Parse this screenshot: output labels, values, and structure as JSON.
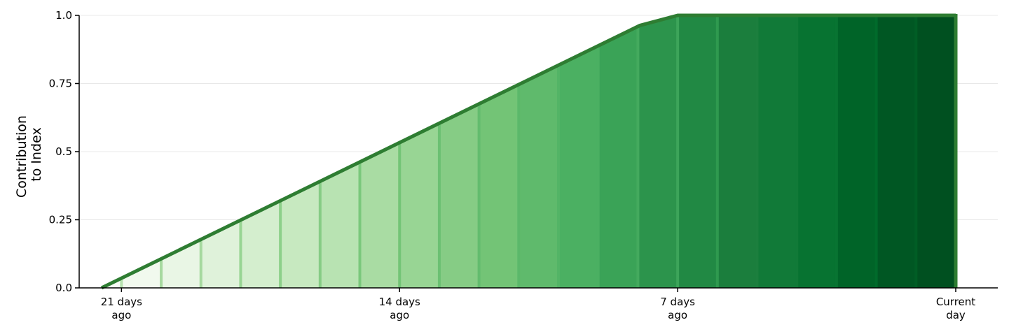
{
  "chart_data": {
    "type": "area",
    "title": "",
    "ylabel": [
      "Contribution",
      "to Index"
    ],
    "xlabel": "",
    "ylim": [
      0,
      1.0
    ],
    "xlim": [
      -21.5,
      0
    ],
    "grid": "horizontal",
    "y_ticks": [
      {
        "value": 0.0,
        "label": "0.0"
      },
      {
        "value": 0.25,
        "label": "0.25"
      },
      {
        "value": 0.5,
        "label": "0.5"
      },
      {
        "value": 0.75,
        "label": "0.75"
      },
      {
        "value": 1.0,
        "label": "1.0"
      }
    ],
    "x_ticks": [
      {
        "value": -21,
        "label": [
          "21 days",
          "ago"
        ]
      },
      {
        "value": -14,
        "label": [
          "14 days",
          "ago"
        ]
      },
      {
        "value": -7,
        "label": [
          "7 days",
          "ago"
        ]
      },
      {
        "value": 0,
        "label": [
          "Current",
          "day"
        ]
      }
    ],
    "curve": {
      "x": [
        -21.5,
        -7.95,
        -7,
        0
      ],
      "y": [
        0.0,
        0.963,
        1.0,
        1.0
      ],
      "color": "#2e7d32"
    },
    "bands": {
      "boundaries": [
        -21.5,
        -21,
        -20,
        -19,
        -18,
        -17,
        -16,
        -15,
        -14,
        -13,
        -12,
        -11,
        -10,
        -9,
        -8,
        -7,
        -6,
        -5,
        -4,
        -3,
        -2,
        -1,
        0
      ],
      "fill_colors": [
        "#f7fcf5",
        "#f1f9ee",
        "#e9f6e5",
        "#dff2da",
        "#d4eece",
        "#c7e9c0",
        "#b8e3b2",
        "#a9dca3",
        "#98d594",
        "#86cc85",
        "#73c476",
        "#5fba6c",
        "#4bb062",
        "#3aa357",
        "#2c944c",
        "#218944",
        "#1b7e3d",
        "#117a38",
        "#077331",
        "#006428",
        "#005723",
        "#005020"
      ],
      "edge_colors": [
        "#b5e1ae",
        "#b5e1ae",
        "#a6d99f",
        "#a6d99f",
        "#98d594",
        "#8dd08a",
        "#86cc85",
        "#7ac87c",
        "#73c476",
        "#6bc072",
        "#63bc6e",
        "#5bb86a",
        "#53b466",
        "#4bb062",
        "#44aa5e",
        "#3da55a",
        "#2f9a4f",
        "#1c7f3e",
        "#117a38",
        "#087432",
        "#006b2b",
        "#005d25"
      ]
    }
  }
}
